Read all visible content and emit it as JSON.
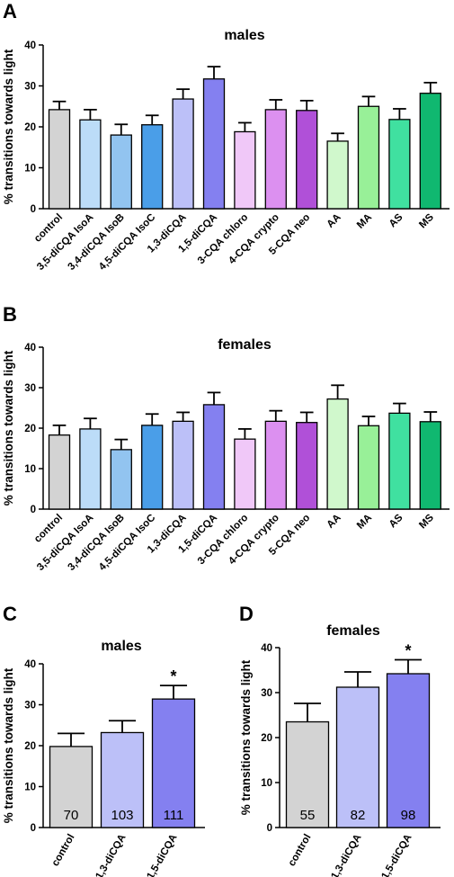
{
  "colors": {
    "control": "#d3d3d3",
    "IsoA": "#bcdcf8",
    "IsoB": "#92c4f0",
    "IsoC": "#4a9ee8",
    "13di": "#bcc0f8",
    "15di": "#8480f0",
    "chloro": "#f0c8f8",
    "crypto": "#dc90f0",
    "neo": "#b050d8",
    "AA": "#d0f8cc",
    "MA": "#98f098",
    "AS": "#40e0a0",
    "MS": "#10b870"
  },
  "panels": [
    {
      "letter": "A",
      "title": "males"
    },
    {
      "letter": "B",
      "title": "females"
    },
    {
      "letter": "C",
      "title": "males"
    },
    {
      "letter": "D",
      "title": "females"
    }
  ],
  "chart_data": [
    {
      "type": "bar",
      "panel": "A",
      "title": "males",
      "ylabel": "% transitions towards light",
      "ylim": [
        0,
        40
      ],
      "yticks": [
        "0",
        "10",
        "20",
        "30",
        "40"
      ],
      "categories": [
        "control",
        "3,5-diCQA IsoA",
        "3,4-diCQA IsoB",
        "4,5-diCQA IsoC",
        "1,3-diCQA",
        "1,5-diCQA",
        "3-CQA chloro",
        "4-CQA crypto",
        "5-CQA neo",
        "AA",
        "MA",
        "AS",
        "MS"
      ],
      "values": [
        24.2,
        21.7,
        18.0,
        20.5,
        26.8,
        31.7,
        18.8,
        24.2,
        24.0,
        16.5,
        25.0,
        21.8,
        28.2
      ],
      "errors": [
        2.0,
        2.5,
        2.6,
        2.3,
        2.4,
        3.0,
        2.2,
        2.4,
        2.4,
        1.9,
        2.4,
        2.6,
        2.6
      ],
      "color_keys": [
        "control",
        "IsoA",
        "IsoB",
        "IsoC",
        "13di",
        "15di",
        "chloro",
        "crypto",
        "neo",
        "AA",
        "MA",
        "AS",
        "MS"
      ],
      "n_labels": [
        "",
        "",
        "",
        "",
        "",
        "",
        "",
        "",
        "",
        "",
        "",
        "",
        ""
      ],
      "significance": [
        "",
        "",
        "",
        "",
        "",
        "",
        "",
        "",
        "",
        "",
        "",
        "",
        ""
      ]
    },
    {
      "type": "bar",
      "panel": "B",
      "title": "females",
      "ylabel": "% transitions towards light",
      "ylim": [
        0,
        40
      ],
      "yticks": [
        "0",
        "10",
        "20",
        "30",
        "40"
      ],
      "categories": [
        "control",
        "3,5-diCQA IsoA",
        "3,4-diCQA IsoB",
        "4,5-diCQA IsoC",
        "1,3-diCQA",
        "1,5-diCQA",
        "3-CQA chloro",
        "4-CQA crypto",
        "5-CQA neo",
        "AA",
        "MA",
        "AS",
        "MS"
      ],
      "values": [
        18.3,
        19.8,
        14.7,
        20.7,
        21.7,
        25.8,
        17.3,
        21.7,
        21.4,
        27.2,
        20.6,
        23.7,
        21.6
      ],
      "errors": [
        2.4,
        2.6,
        2.5,
        2.8,
        2.2,
        3.0,
        2.5,
        2.6,
        2.5,
        3.4,
        2.3,
        2.4,
        2.4
      ],
      "color_keys": [
        "control",
        "IsoA",
        "IsoB",
        "IsoC",
        "13di",
        "15di",
        "chloro",
        "crypto",
        "neo",
        "AA",
        "MA",
        "AS",
        "MS"
      ],
      "n_labels": [
        "",
        "",
        "",
        "",
        "",
        "",
        "",
        "",
        "",
        "",
        "",
        "",
        ""
      ],
      "significance": [
        "",
        "",
        "",
        "",
        "",
        "",
        "",
        "",
        "",
        "",
        "",
        "",
        ""
      ]
    },
    {
      "type": "bar",
      "panel": "C",
      "title": "males",
      "ylabel": "% transitions towards light",
      "ylim": [
        0,
        40
      ],
      "yticks": [
        "0",
        "10",
        "20",
        "30",
        "40"
      ],
      "categories": [
        "control",
        "1,3-diCQA",
        "1,5-diCQA"
      ],
      "values": [
        19.8,
        23.2,
        31.4
      ],
      "errors": [
        3.2,
        2.9,
        3.3
      ],
      "color_keys": [
        "control",
        "13di",
        "15di"
      ],
      "n_labels": [
        "70",
        "103",
        "111"
      ],
      "significance": [
        "",
        "",
        "*"
      ]
    },
    {
      "type": "bar",
      "panel": "D",
      "title": "females",
      "ylabel": "% transitions towards light",
      "ylim": [
        0,
        40
      ],
      "yticks": [
        "0",
        "10",
        "20",
        "30",
        "40"
      ],
      "categories": [
        "control",
        "1,3-diCQA",
        "1,5-diCQA"
      ],
      "values": [
        23.5,
        31.2,
        34.2
      ],
      "errors": [
        4.1,
        3.4,
        3.1
      ],
      "color_keys": [
        "control",
        "13di",
        "15di"
      ],
      "n_labels": [
        "55",
        "82",
        "98"
      ],
      "significance": [
        "",
        "",
        "*"
      ]
    }
  ]
}
